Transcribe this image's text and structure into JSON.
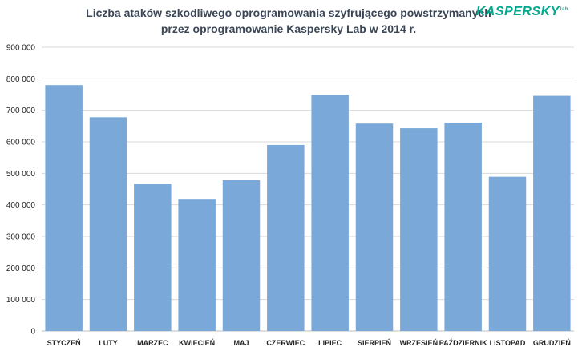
{
  "chart_data": {
    "type": "bar",
    "title_lines": [
      "Liczba ataków szkodliwego oprogramowania szyfrującego powstrzymanych",
      "przez oprogramowanie Kaspersky Lab w 2014 r."
    ],
    "categories": [
      "STYCZEŃ",
      "LUTY",
      "MARZEC",
      "KWIECIEŃ",
      "MAJ",
      "CZERWIEC",
      "LIPIEC",
      "SIERPIEŃ",
      "WRZESIEŃ",
      "PAŹDZIERNIK",
      "LISTOPAD",
      "GRUDZIEŃ"
    ],
    "values": [
      780000,
      678000,
      467000,
      419000,
      478000,
      590000,
      749000,
      658000,
      643000,
      661000,
      489000,
      746000
    ],
    "ylim": [
      0,
      900000
    ],
    "yticks": [
      0,
      100000,
      200000,
      300000,
      400000,
      500000,
      600000,
      700000,
      800000,
      900000
    ],
    "ytick_labels": [
      "0",
      "100 000",
      "200 000",
      "300 000",
      "400 000",
      "500 000",
      "600 000",
      "700 000",
      "800 000",
      "900 000"
    ],
    "grid": true,
    "bar_color": "#7aa8d8",
    "grid_color": "#d9d9d9"
  },
  "logo": {
    "main": "KASPERSKY",
    "sub": "lab",
    "color": "#00a88e"
  }
}
